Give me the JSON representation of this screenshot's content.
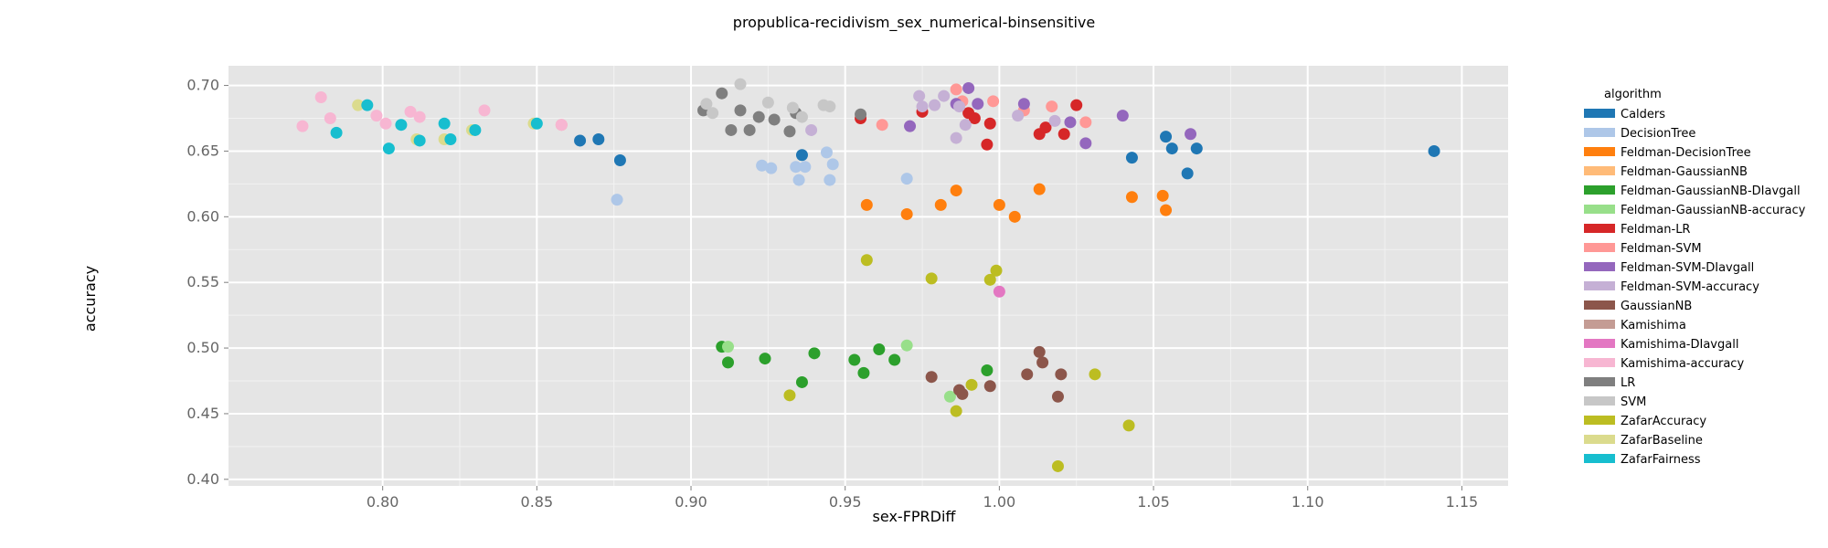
{
  "chart_data": {
    "type": "scatter",
    "title": "propublica-recidivism_sex_numerical-binsensitive",
    "xlabel": "sex-FPRDiff",
    "ylabel": "accuracy",
    "xlim": [
      0.75,
      1.165
    ],
    "ylim": [
      0.395,
      0.715
    ],
    "xticks": [
      0.8,
      0.85,
      0.9,
      0.95,
      1.0,
      1.05,
      1.1,
      1.15
    ],
    "xtick_labels": [
      "0.80",
      "0.85",
      "0.90",
      "0.95",
      "1.00",
      "1.05",
      "1.10",
      "1.15"
    ],
    "yticks": [
      0.4,
      0.45,
      0.5,
      0.55,
      0.6,
      0.65,
      0.7
    ],
    "ytick_labels": [
      "0.40",
      "0.45",
      "0.50",
      "0.55",
      "0.60",
      "0.65",
      "0.70"
    ],
    "grid": true,
    "legend_title": "algorithm",
    "legend_position": "right",
    "series": [
      {
        "name": "Calders",
        "color": "#1f77b4",
        "points": [
          [
            0.864,
            0.658
          ],
          [
            0.87,
            0.659
          ],
          [
            0.877,
            0.643
          ],
          [
            0.936,
            0.647
          ],
          [
            1.043,
            0.645
          ],
          [
            1.054,
            0.661
          ],
          [
            1.056,
            0.652
          ],
          [
            1.061,
            0.633
          ],
          [
            1.064,
            0.652
          ],
          [
            1.141,
            0.65
          ]
        ]
      },
      {
        "name": "DecisionTree",
        "color": "#aec7e8",
        "points": [
          [
            0.876,
            0.613
          ],
          [
            0.923,
            0.639
          ],
          [
            0.926,
            0.637
          ],
          [
            0.934,
            0.638
          ],
          [
            0.935,
            0.628
          ],
          [
            0.937,
            0.638
          ],
          [
            0.944,
            0.649
          ],
          [
            0.945,
            0.628
          ],
          [
            0.946,
            0.64
          ],
          [
            0.97,
            0.629
          ]
        ]
      },
      {
        "name": "Feldman-DecisionTree",
        "color": "#ff7f0e",
        "points": [
          [
            0.957,
            0.609
          ],
          [
            0.97,
            0.602
          ],
          [
            0.981,
            0.609
          ],
          [
            0.986,
            0.62
          ],
          [
            1.0,
            0.609
          ],
          [
            1.005,
            0.6
          ],
          [
            1.013,
            0.621
          ],
          [
            1.043,
            0.615
          ],
          [
            1.053,
            0.616
          ],
          [
            1.054,
            0.605
          ]
        ]
      },
      {
        "name": "Feldman-GaussianNB",
        "color": "#ffbb78",
        "points": []
      },
      {
        "name": "Feldman-GaussianNB-DIavgall",
        "color": "#2ca02c",
        "points": [
          [
            0.91,
            0.501
          ],
          [
            0.912,
            0.489
          ],
          [
            0.924,
            0.492
          ],
          [
            0.936,
            0.474
          ],
          [
            0.94,
            0.496
          ],
          [
            0.953,
            0.491
          ],
          [
            0.956,
            0.481
          ],
          [
            0.961,
            0.499
          ],
          [
            0.966,
            0.491
          ],
          [
            0.996,
            0.483
          ]
        ]
      },
      {
        "name": "Feldman-GaussianNB-accuracy",
        "color": "#98df8a",
        "points": [
          [
            0.912,
            0.501
          ],
          [
            0.97,
            0.502
          ],
          [
            0.984,
            0.463
          ]
        ]
      },
      {
        "name": "Feldman-LR",
        "color": "#d62728",
        "points": [
          [
            0.955,
            0.675
          ],
          [
            0.975,
            0.68
          ],
          [
            0.99,
            0.679
          ],
          [
            0.992,
            0.675
          ],
          [
            0.996,
            0.655
          ],
          [
            0.997,
            0.671
          ],
          [
            1.013,
            0.663
          ],
          [
            1.015,
            0.668
          ],
          [
            1.021,
            0.663
          ],
          [
            1.025,
            0.685
          ]
        ]
      },
      {
        "name": "Feldman-SVM",
        "color": "#ff9896",
        "points": [
          [
            0.858,
            0.67
          ],
          [
            0.962,
            0.67
          ],
          [
            0.986,
            0.697
          ],
          [
            0.988,
            0.688
          ],
          [
            0.998,
            0.688
          ],
          [
            1.008,
            0.681
          ],
          [
            1.017,
            0.684
          ],
          [
            1.028,
            0.672
          ]
        ]
      },
      {
        "name": "Feldman-SVM-DIavgall",
        "color": "#9467bd",
        "points": [
          [
            0.971,
            0.669
          ],
          [
            0.986,
            0.686
          ],
          [
            0.99,
            0.698
          ],
          [
            0.993,
            0.686
          ],
          [
            1.008,
            0.686
          ],
          [
            1.023,
            0.672
          ],
          [
            1.028,
            0.656
          ],
          [
            1.04,
            0.677
          ],
          [
            1.062,
            0.663
          ]
        ]
      },
      {
        "name": "Feldman-SVM-accuracy",
        "color": "#c5b0d5",
        "points": [
          [
            0.939,
            0.666
          ],
          [
            0.974,
            0.692
          ],
          [
            0.975,
            0.684
          ],
          [
            0.979,
            0.685
          ],
          [
            0.982,
            0.692
          ],
          [
            0.986,
            0.66
          ],
          [
            0.987,
            0.684
          ],
          [
            0.989,
            0.67
          ],
          [
            1.006,
            0.677
          ],
          [
            1.018,
            0.673
          ]
        ]
      },
      {
        "name": "GaussianNB",
        "color": "#8c564b",
        "points": [
          [
            0.978,
            0.478
          ],
          [
            0.987,
            0.468
          ],
          [
            0.988,
            0.465
          ],
          [
            0.997,
            0.471
          ],
          [
            1.009,
            0.48
          ],
          [
            1.013,
            0.497
          ],
          [
            1.014,
            0.489
          ],
          [
            1.019,
            0.463
          ],
          [
            1.02,
            0.48
          ]
        ]
      },
      {
        "name": "Kamishima",
        "color": "#c49c94",
        "points": []
      },
      {
        "name": "Kamishima-DIavgall",
        "color": "#e377c2",
        "points": [
          [
            1.0,
            0.543
          ]
        ]
      },
      {
        "name": "Kamishima-accuracy",
        "color": "#f7b6d2",
        "points": [
          [
            0.774,
            0.669
          ],
          [
            0.78,
            0.691
          ],
          [
            0.783,
            0.675
          ],
          [
            0.798,
            0.677
          ],
          [
            0.801,
            0.671
          ],
          [
            0.809,
            0.68
          ],
          [
            0.812,
            0.676
          ],
          [
            0.833,
            0.681
          ],
          [
            0.858,
            0.67
          ]
        ]
      },
      {
        "name": "LR",
        "color": "#7f7f7f",
        "points": [
          [
            0.904,
            0.681
          ],
          [
            0.91,
            0.694
          ],
          [
            0.913,
            0.666
          ],
          [
            0.916,
            0.681
          ],
          [
            0.919,
            0.666
          ],
          [
            0.922,
            0.676
          ],
          [
            0.927,
            0.674
          ],
          [
            0.932,
            0.665
          ],
          [
            0.934,
            0.679
          ],
          [
            0.955,
            0.678
          ]
        ]
      },
      {
        "name": "SVM",
        "color": "#c7c7c7",
        "points": [
          [
            0.905,
            0.686
          ],
          [
            0.907,
            0.679
          ],
          [
            0.916,
            0.701
          ],
          [
            0.925,
            0.687
          ],
          [
            0.933,
            0.683
          ],
          [
            0.936,
            0.676
          ],
          [
            0.943,
            0.685
          ],
          [
            0.945,
            0.684
          ]
        ]
      },
      {
        "name": "ZafarAccuracy",
        "color": "#bcbd22",
        "points": [
          [
            0.932,
            0.464
          ],
          [
            0.957,
            0.567
          ],
          [
            0.978,
            0.553
          ],
          [
            0.986,
            0.452
          ],
          [
            0.991,
            0.472
          ],
          [
            0.997,
            0.552
          ],
          [
            0.999,
            0.559
          ],
          [
            1.019,
            0.41
          ],
          [
            1.031,
            0.48
          ],
          [
            1.042,
            0.441
          ]
        ]
      },
      {
        "name": "ZafarBaseline",
        "color": "#dbdb8d",
        "points": [
          [
            0.792,
            0.685
          ],
          [
            0.811,
            0.659
          ],
          [
            0.82,
            0.659
          ],
          [
            0.829,
            0.666
          ],
          [
            0.849,
            0.671
          ]
        ]
      },
      {
        "name": "ZafarFairness",
        "color": "#17becf",
        "points": [
          [
            0.785,
            0.664
          ],
          [
            0.795,
            0.685
          ],
          [
            0.802,
            0.652
          ],
          [
            0.806,
            0.67
          ],
          [
            0.812,
            0.658
          ],
          [
            0.82,
            0.671
          ],
          [
            0.822,
            0.659
          ],
          [
            0.83,
            0.666
          ],
          [
            0.85,
            0.671
          ]
        ]
      }
    ]
  }
}
